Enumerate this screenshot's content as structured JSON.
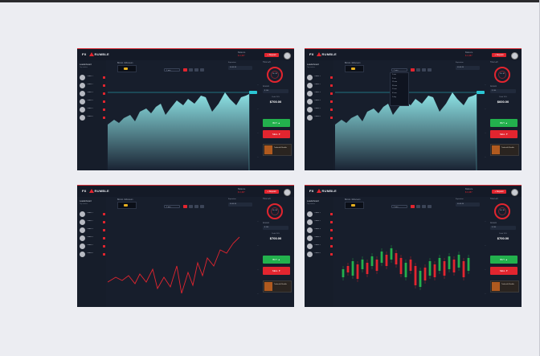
{
  "header": {
    "logo_prefix": "FX",
    "logo_name": "RUMBLE",
    "balance_label": "Balance",
    "balance_value": "$ 3,457",
    "deposit_label": "+ Deposit"
  },
  "sidebar": {
    "title": "Leaderboard",
    "subtitle": "Top traders",
    "traders": [
      "Trader 1",
      "Trader 2",
      "Trader 3",
      "Trader 4",
      "Trader 5",
      "Trader 6"
    ]
  },
  "toolbar": {
    "asset_label": "Bitcoin / Ethereum",
    "timeframe": "1 min",
    "expiration_label": "Expiration",
    "expiration_value": "00:00:30"
  },
  "menu": {
    "items": [
      "1 min",
      "5 min",
      "15 min",
      "30 min",
      "1 hour",
      "4 hour",
      "1 day"
    ]
  },
  "right_panel": {
    "time_label": "Time Left",
    "timer_value": "00 : 30",
    "amount_label": "Amount",
    "amount_value": "$ 100",
    "profit_label": "Profit 70%",
    "profit_value": "$700.00",
    "buy_label": "BUY ▲",
    "sell_label": "SELL ▼",
    "ad_text": "Trade with Rumble"
  },
  "panels": [
    {
      "chart_type": "area",
      "profit_value": "$700.00"
    },
    {
      "chart_type": "area",
      "profit_value": "$600.00",
      "menu_open": true
    },
    {
      "chart_type": "line",
      "profit_value": "$700.00"
    },
    {
      "chart_type": "candles",
      "profit_value": "$700.00"
    }
  ],
  "colors": {
    "bg": "#171e2c",
    "accent_red": "#e2252f",
    "buy_green": "#23b14d",
    "area_cyan": "#8ee4e6"
  }
}
